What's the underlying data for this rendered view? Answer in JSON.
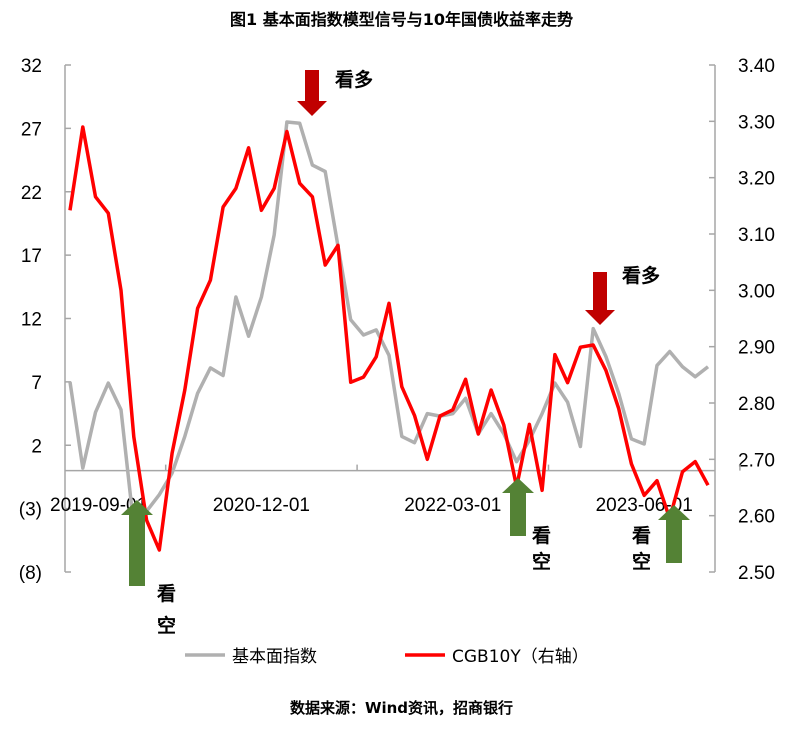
{
  "title": "图1   基本面指数模型信号与10年国债收益率走势",
  "source": "数据来源：Wind资讯，招商银行",
  "chart_data": {
    "type": "line",
    "title": "图1   基本面指数模型信号与10年国债收益率走势",
    "x_start": "2019-09-01",
    "x_end": "2023-11-01",
    "x_frequency": "monthly",
    "x_tick_labels": [
      "2019-09-01",
      "2020-12-01",
      "2022-03-01",
      "2023-06-01"
    ],
    "y_left": {
      "range": [
        -8,
        32
      ],
      "ticks": [
        32,
        27,
        22,
        17,
        12,
        7,
        2,
        -3,
        -8
      ],
      "tick_labels": [
        "32",
        "27",
        "22",
        "17",
        "12",
        "7",
        "2",
        "(3)",
        "(8)"
      ],
      "negative_color": "#ff0000"
    },
    "y_right": {
      "range": [
        2.5,
        3.4
      ],
      "ticks": [
        "3.40",
        "3.30",
        "3.20",
        "3.10",
        "3.00",
        "2.90",
        "2.80",
        "2.70",
        "2.60",
        "2.50"
      ]
    },
    "grid": false,
    "legend_position": "bottom",
    "series": [
      {
        "name": "基本面指数",
        "axis": "left",
        "color": "#b0b0b0",
        "values": [
          7.0,
          0.2,
          4.6,
          6.9,
          4.8,
          -4.4,
          -3.2,
          -1.9,
          -0.2,
          2.7,
          6.1,
          8.1,
          7.5,
          13.7,
          10.6,
          13.7,
          18.6,
          27.5,
          27.4,
          24.1,
          23.6,
          17.7,
          11.9,
          10.7,
          11.1,
          9.1,
          2.7,
          2.2,
          4.5,
          4.3,
          4.5,
          5.7,
          2.9,
          4.5,
          2.9,
          0.7,
          2.4,
          4.5,
          6.9,
          5.4,
          1.9,
          11.2,
          9.0,
          6.1,
          2.5,
          2.1,
          8.3,
          9.4,
          8.2,
          7.4,
          8.2
        ]
      },
      {
        "name": "CGB10Y（右轴）",
        "axis": "right",
        "color": "#ff0000",
        "values": [
          3.142,
          3.29,
          3.166,
          3.137,
          3.0,
          2.74,
          2.592,
          2.539,
          2.711,
          2.823,
          2.968,
          3.018,
          3.148,
          3.181,
          3.253,
          3.142,
          3.181,
          3.282,
          3.19,
          3.166,
          3.045,
          3.08,
          2.837,
          2.846,
          2.882,
          2.977,
          2.829,
          2.778,
          2.7,
          2.777,
          2.788,
          2.842,
          2.745,
          2.823,
          2.761,
          2.651,
          2.762,
          2.645,
          2.886,
          2.836,
          2.899,
          2.903,
          2.858,
          2.79,
          2.692,
          2.636,
          2.662,
          2.595,
          2.678,
          2.696,
          2.654
        ]
      }
    ],
    "annotations": [
      {
        "text": "看多",
        "type": "down-arrow",
        "color": "#c00000",
        "x": "2021-04-01"
      },
      {
        "text": "看空",
        "type": "up-arrow",
        "color": "#548235",
        "x": "2020-02-01"
      },
      {
        "text": "看空",
        "type": "up-arrow",
        "color": "#548235",
        "x": "2022-08-01"
      },
      {
        "text": "看多",
        "type": "down-arrow",
        "color": "#c00000",
        "x": "2023-02-01"
      },
      {
        "text": "看空",
        "type": "up-arrow",
        "color": "#548235",
        "x": "2023-09-01"
      }
    ]
  }
}
